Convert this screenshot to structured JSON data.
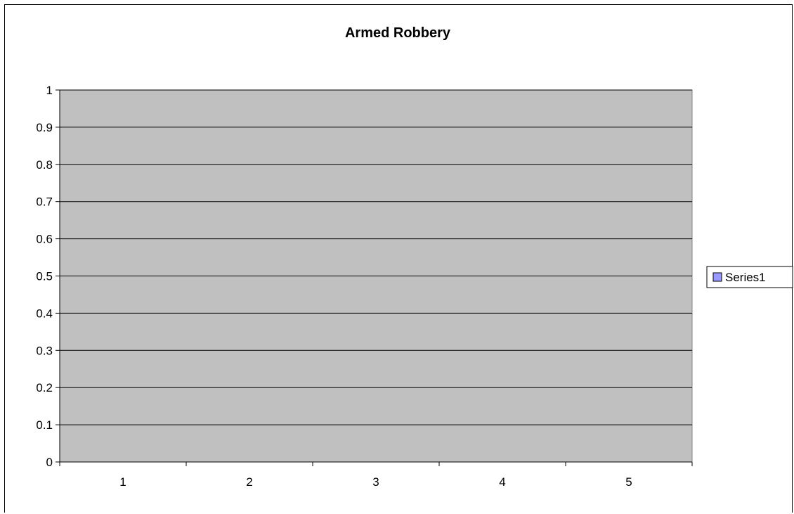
{
  "chart_data": {
    "type": "bar",
    "title": "Armed Robbery",
    "xlabel": "",
    "ylabel": "",
    "categories": [
      "1",
      "2",
      "3",
      "4",
      "5"
    ],
    "series": [
      {
        "name": "Series1",
        "values": [
          0,
          0,
          0,
          0,
          0
        ]
      }
    ],
    "ylim": [
      0,
      1
    ],
    "yticks": [
      "0",
      "0.1",
      "0.2",
      "0.3",
      "0.4",
      "0.5",
      "0.6",
      "0.7",
      "0.8",
      "0.9",
      "1"
    ],
    "grid": true,
    "legend_position": "right",
    "colors": {
      "plot_background": "#c0c0c0",
      "series1_fill": "#9999ff",
      "gridline": "#000000"
    }
  }
}
